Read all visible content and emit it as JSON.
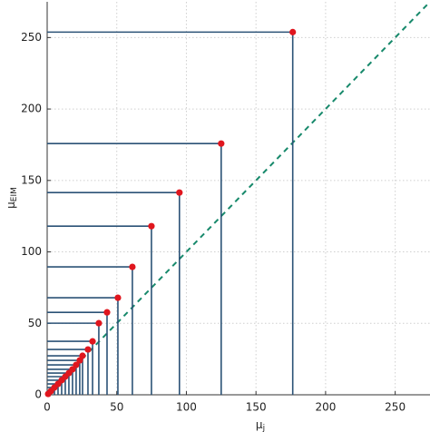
{
  "chart_data": {
    "type": "scatter",
    "xlabel": {
      "text": "μ",
      "sub": "j"
    },
    "ylabel": {
      "text": "μ",
      "sub": "EIM"
    },
    "series": [
      {
        "color": "#e0161e",
        "line_color": "#2b5276",
        "x": [
          176.4,
          125,
          95,
          74.9,
          61.2,
          50.8,
          43,
          37.1,
          32.6,
          29.3,
          25.4,
          23.4,
          20.8,
          18.2,
          15.6,
          13,
          10.4,
          7.8,
          5.2,
          2.6,
          0.7
        ],
        "values": [
          253.8,
          175.8,
          141.5,
          118,
          89.5,
          67.9,
          57.7,
          50.1,
          37.4,
          31.7,
          27.3,
          24.1,
          20.9,
          17.8,
          15.2,
          12.7,
          10.2,
          7.6,
          5.1,
          2.5,
          0.6
        ]
      }
    ],
    "identity_line": {
      "color": "#17896b"
    },
    "xlim": [
      0,
      275
    ],
    "ylim": [
      0,
      275
    ],
    "xticks": [
      0,
      50,
      100,
      150,
      200,
      250
    ],
    "yticks": [
      0,
      50,
      100,
      150,
      200,
      250
    ],
    "grid": true
  }
}
